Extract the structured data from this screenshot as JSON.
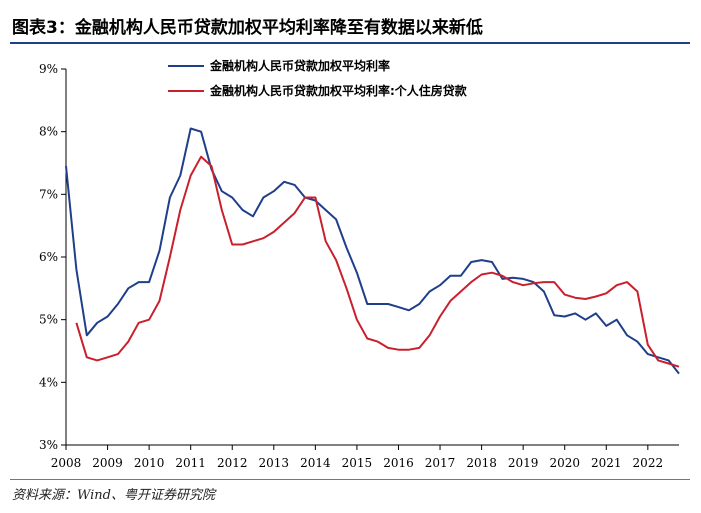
{
  "header": {
    "title": "图表3：金融机构人民币贷款加权平均利率降至有数据以来新低"
  },
  "footer": {
    "source": "资料来源：Wind、粤开证券研究院"
  },
  "colors": {
    "rule": "#1f3f8a",
    "series_blue": "#1f3f8a",
    "series_red": "#c8202d"
  },
  "chart_data": {
    "type": "line",
    "title": "",
    "xlabel": "",
    "ylabel": "",
    "xlim": [
      2008.0,
      2022.75
    ],
    "ylim": [
      3,
      9
    ],
    "x_ticks": [
      2008,
      2009,
      2010,
      2011,
      2012,
      2013,
      2014,
      2015,
      2016,
      2017,
      2018,
      2019,
      2020,
      2021,
      2022
    ],
    "x_tick_labels": [
      "2008",
      "2009",
      "2010",
      "2011",
      "2012",
      "2013",
      "2014",
      "2015",
      "2016",
      "2017",
      "2018",
      "2019",
      "2020",
      "2021",
      "2022"
    ],
    "y_ticks": [
      3,
      4,
      5,
      6,
      7,
      8,
      9
    ],
    "y_tick_labels": [
      "3%",
      "4%",
      "5%",
      "6%",
      "7%",
      "8%",
      "9%"
    ],
    "grid": false,
    "legend_position": "top-center",
    "series": [
      {
        "name": "金融机构人民币贷款加权平均利率",
        "color": "#1f3f8a",
        "x": [
          2008.0,
          2008.25,
          2008.5,
          2008.75,
          2009.0,
          2009.25,
          2009.5,
          2009.75,
          2010.0,
          2010.25,
          2010.5,
          2010.75,
          2011.0,
          2011.25,
          2011.5,
          2011.75,
          2012.0,
          2012.25,
          2012.5,
          2012.75,
          2013.0,
          2013.25,
          2013.5,
          2013.75,
          2014.0,
          2014.25,
          2014.5,
          2014.75,
          2015.0,
          2015.25,
          2015.5,
          2015.75,
          2016.0,
          2016.25,
          2016.5,
          2016.75,
          2017.0,
          2017.25,
          2017.5,
          2017.75,
          2018.0,
          2018.25,
          2018.5,
          2018.75,
          2019.0,
          2019.25,
          2019.5,
          2019.75,
          2020.0,
          2020.25,
          2020.5,
          2020.75,
          2021.0,
          2021.25,
          2021.5,
          2021.75,
          2022.0,
          2022.25,
          2022.5,
          2022.75
        ],
        "values": [
          7.45,
          5.8,
          4.75,
          4.95,
          5.05,
          5.25,
          5.5,
          5.6,
          5.6,
          6.1,
          6.95,
          7.3,
          8.05,
          8.0,
          7.4,
          7.05,
          6.95,
          6.75,
          6.65,
          6.95,
          7.05,
          7.2,
          7.15,
          6.95,
          6.9,
          6.75,
          6.6,
          6.15,
          5.75,
          5.25,
          5.25,
          5.25,
          5.2,
          5.15,
          5.25,
          5.45,
          5.55,
          5.7,
          5.7,
          5.92,
          5.95,
          5.92,
          5.65,
          5.67,
          5.65,
          5.6,
          5.45,
          5.07,
          5.05,
          5.1,
          5.0,
          5.1,
          4.9,
          5.0,
          4.75,
          4.65,
          4.45,
          4.4,
          4.35,
          4.14
        ]
      },
      {
        "name": "金融机构人民币贷款加权平均利率:个人住房贷款",
        "color": "#c8202d",
        "x": [
          2008.25,
          2008.5,
          2008.75,
          2009.0,
          2009.25,
          2009.5,
          2009.75,
          2010.0,
          2010.25,
          2010.5,
          2010.75,
          2011.0,
          2011.25,
          2011.5,
          2011.75,
          2012.0,
          2012.25,
          2012.5,
          2012.75,
          2013.0,
          2013.25,
          2013.5,
          2013.75,
          2014.0,
          2014.25,
          2014.5,
          2014.75,
          2015.0,
          2015.25,
          2015.5,
          2015.75,
          2016.0,
          2016.25,
          2016.5,
          2016.75,
          2017.0,
          2017.25,
          2017.5,
          2017.75,
          2018.0,
          2018.25,
          2018.5,
          2018.75,
          2019.0,
          2019.25,
          2019.5,
          2019.75,
          2020.0,
          2020.25,
          2020.5,
          2020.75,
          2021.0,
          2021.25,
          2021.5,
          2021.75,
          2022.0,
          2022.25,
          2022.5,
          2022.75
        ],
        "values": [
          4.95,
          4.4,
          4.35,
          4.4,
          4.45,
          4.65,
          4.95,
          5.0,
          5.3,
          6.0,
          6.75,
          7.3,
          7.6,
          7.45,
          6.75,
          6.2,
          6.2,
          6.25,
          6.3,
          6.4,
          6.55,
          6.7,
          6.95,
          6.95,
          6.25,
          5.95,
          5.5,
          5.0,
          4.7,
          4.65,
          4.55,
          4.52,
          4.52,
          4.55,
          4.75,
          5.05,
          5.3,
          5.45,
          5.6,
          5.72,
          5.75,
          5.7,
          5.6,
          5.55,
          5.58,
          5.6,
          5.6,
          5.4,
          5.35,
          5.33,
          5.37,
          5.42,
          5.55,
          5.6,
          5.45,
          4.6,
          4.35,
          4.3,
          4.25
        ]
      }
    ]
  }
}
